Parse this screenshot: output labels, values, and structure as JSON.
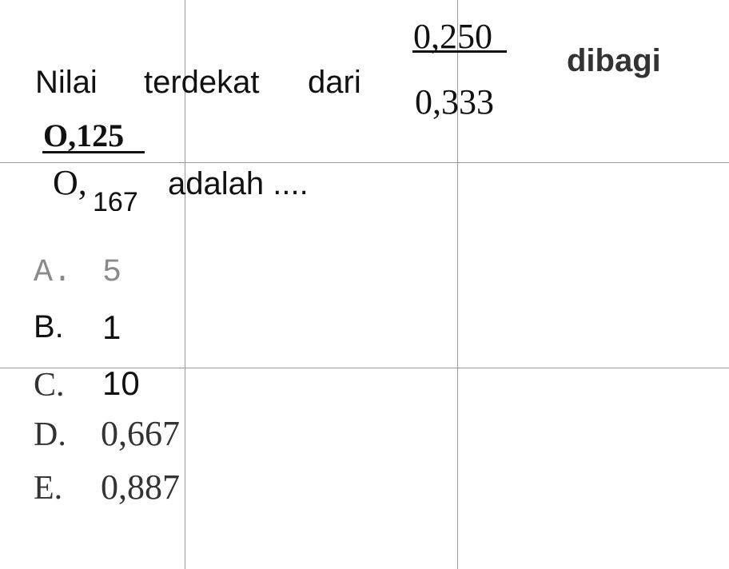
{
  "question": {
    "word_nilai": "Nilai",
    "word_terdekat": "terdekat",
    "word_dari": "dari",
    "fraction1_numerator": "0,250",
    "fraction1_denominator": "0,333",
    "word_dibagi": "dibagi",
    "fraction2_numerator": "O,125",
    "fraction2_denominator_prefix": "O,",
    "fraction2_denominator_sub": "167",
    "word_adalah": "adalah ...."
  },
  "options": [
    {
      "letter": "A.",
      "value": "5"
    },
    {
      "letter": "B.",
      "value": "1"
    },
    {
      "letter": "C.",
      "value": "10"
    },
    {
      "letter": "D.",
      "value": "0,667"
    },
    {
      "letter": "E.",
      "value": "0,887"
    }
  ]
}
